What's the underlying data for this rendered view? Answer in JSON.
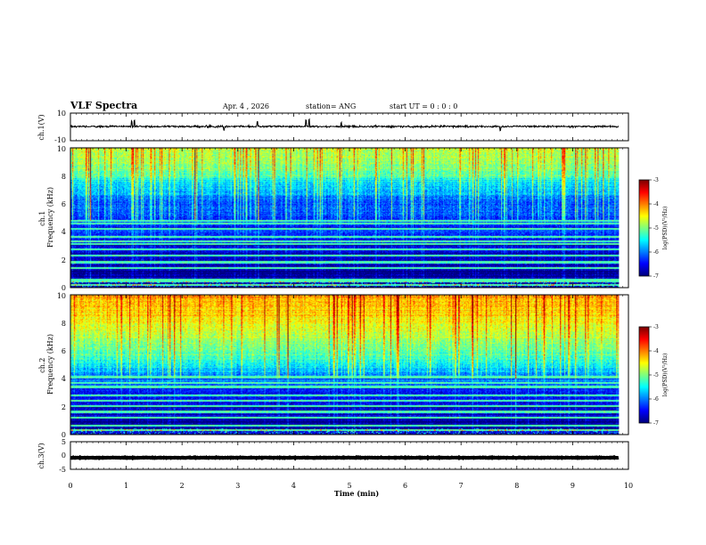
{
  "header": {
    "title": "VLF Spectra",
    "date": "Apr. 4  , 2026",
    "station": "station= ANG",
    "start_ut": "start  UT =   0 : 0  : 0"
  },
  "chart_data": [
    {
      "type": "line",
      "name": "ch1-waveform",
      "ylabel": "ch.1(V)",
      "yticks": [
        "10",
        "-10"
      ],
      "ylim": [
        -10,
        10
      ],
      "xlim": [
        0,
        10
      ],
      "x_end_min": 9.83,
      "baseline": 0.3,
      "noise_amplitude": 2,
      "spikes": [
        {
          "t": 1.1,
          "amp": 4
        },
        {
          "t": 1.15,
          "amp": 4
        },
        {
          "t": 2.75,
          "amp": -3
        },
        {
          "t": 3.35,
          "amp": 3
        },
        {
          "t": 4.22,
          "amp": 4.5
        },
        {
          "t": 4.28,
          "amp": 4.5
        },
        {
          "t": 4.85,
          "amp": 3
        },
        {
          "t": 7.7,
          "amp": -3
        }
      ]
    },
    {
      "type": "heatmap",
      "name": "ch1-spectrogram",
      "ylabel": "ch.1\nFrequency  (kHz)",
      "yticks": [
        "0",
        "2",
        "4",
        "6",
        "8",
        "10"
      ],
      "ylim": [
        0,
        10
      ],
      "xlim": [
        0,
        10
      ],
      "x_end_min": 9.83,
      "colorbar": {
        "label": "log(PSD)(V²/Hz)",
        "ticks": [
          "-3",
          "-4",
          "-5",
          "-6",
          "-7"
        ],
        "range": [
          -7,
          -3
        ]
      },
      "profile": {
        "levels": [
          [
            0,
            -6.8
          ],
          [
            1.5,
            -6.8
          ],
          [
            3.0,
            -6.5
          ],
          [
            4.5,
            -6.3
          ],
          [
            5.5,
            -6.2
          ],
          [
            6.5,
            -6.0
          ],
          [
            7.5,
            -5.5
          ],
          [
            8.5,
            -5.0
          ],
          [
            9.3,
            -4.8
          ],
          [
            10,
            -4.7
          ]
        ],
        "banded_below_khz": 4.8
      },
      "bright_lines_khz": [
        0.15,
        0.4,
        0.55,
        1.4,
        1.8,
        2.3,
        2.7,
        3.1,
        3.3,
        3.6,
        4.2,
        4.6,
        4.8
      ]
    },
    {
      "type": "heatmap",
      "name": "ch2-spectrogram",
      "ylabel": "ch.2\nFrequency  (kHz)",
      "yticks": [
        "0",
        "2",
        "4",
        "6",
        "8",
        "10"
      ],
      "ylim": [
        0,
        10
      ],
      "xlim": [
        0,
        10
      ],
      "x_end_min": 9.83,
      "colorbar": {
        "label": "log(PSD)(V²/Hz)",
        "ticks": [
          "-3",
          "-4",
          "-5",
          "-6",
          "-7"
        ],
        "range": [
          -7,
          -3
        ]
      },
      "profile": {
        "levels": [
          [
            0,
            -6.7
          ],
          [
            1.5,
            -6.6
          ],
          [
            3.0,
            -6.4
          ],
          [
            4.0,
            -6.0
          ],
          [
            5.0,
            -5.5
          ],
          [
            6.0,
            -5.1
          ],
          [
            7.0,
            -4.8
          ],
          [
            8.0,
            -4.5
          ],
          [
            9.0,
            -4.3
          ],
          [
            10,
            -4.2
          ]
        ],
        "banded_below_khz": 4.0
      },
      "bright_lines_khz": [
        0.3,
        0.6,
        1.2,
        1.6,
        2.0,
        2.4,
        2.8,
        3.4,
        3.7,
        4.1
      ]
    },
    {
      "type": "line",
      "name": "ch3-waveform",
      "ylabel": "ch.3(V)",
      "yticks": [
        "5",
        "0",
        "-5"
      ],
      "ylim": [
        -5,
        5
      ],
      "xlim": [
        0,
        10
      ],
      "x_end_min": 9.83,
      "baseline": -0.8,
      "noise_amplitude": 0.3,
      "spikes": []
    }
  ],
  "xaxis": {
    "label": "Time  (min)",
    "ticks": [
      "0",
      "1",
      "2",
      "3",
      "4",
      "5",
      "6",
      "7",
      "8",
      "9",
      "10"
    ],
    "range": [
      0,
      10
    ]
  }
}
